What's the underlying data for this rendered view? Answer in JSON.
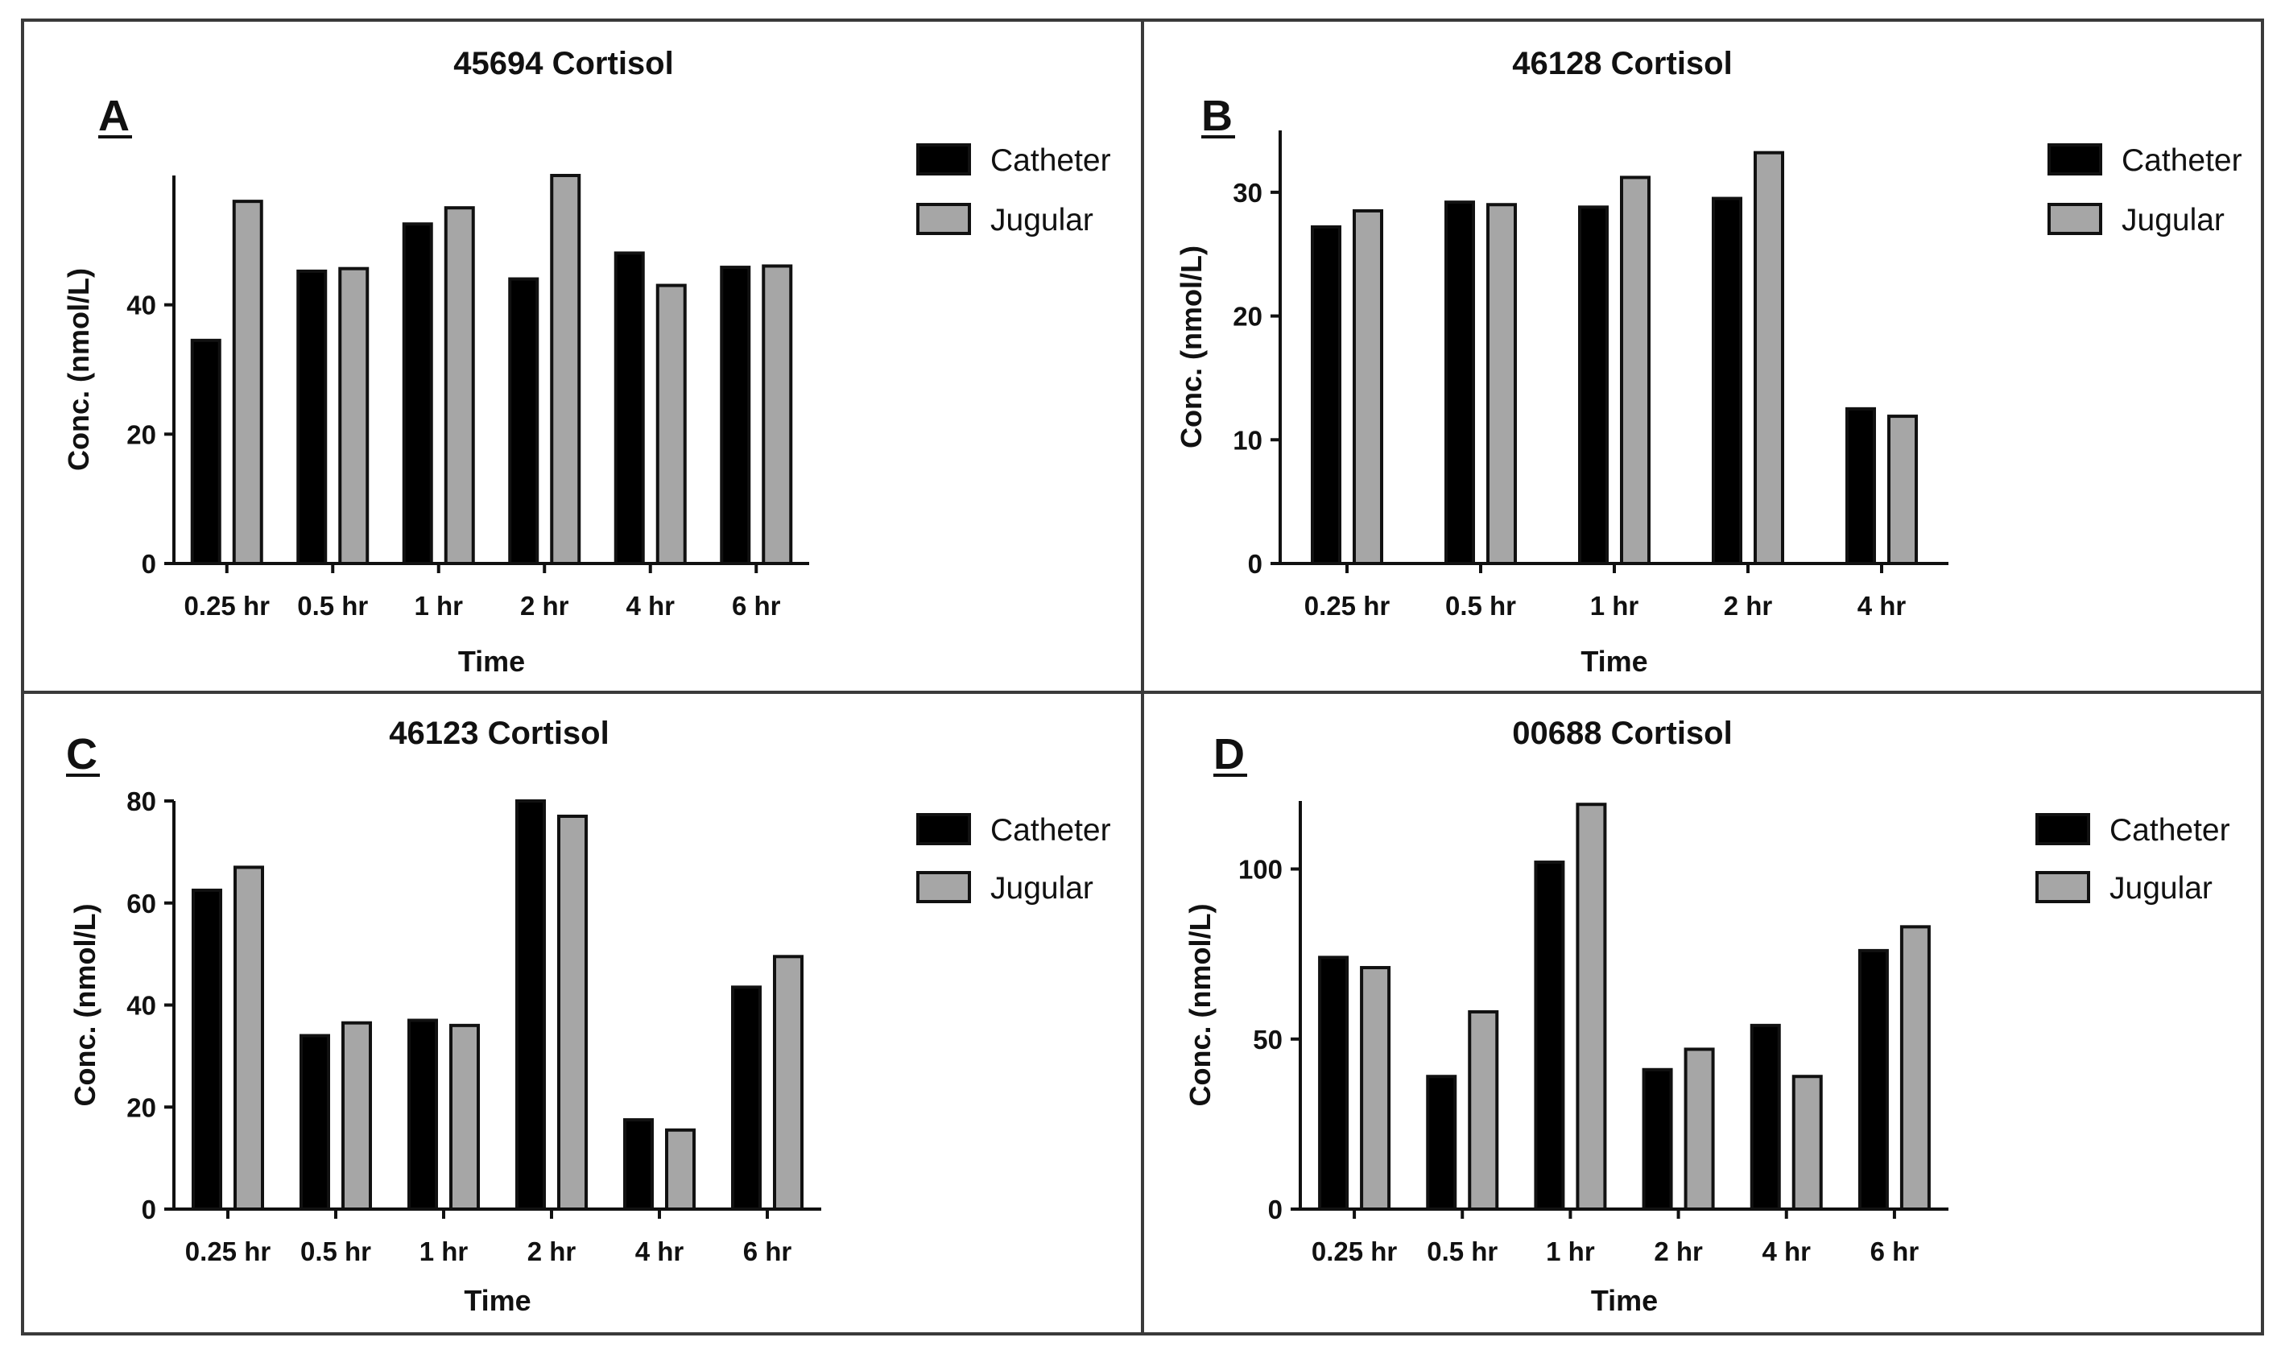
{
  "chart_data": [
    {
      "panel": "A",
      "type": "bar",
      "title": "45694 Cortisol",
      "categories": [
        "0.25 hr",
        "0.5 hr",
        "1 hr",
        "2 hr",
        "4 hr",
        "6 hr"
      ],
      "series": [
        {
          "name": "Catheter",
          "values": [
            34.5,
            45.2,
            52.5,
            44.0,
            48.0,
            45.8
          ]
        },
        {
          "name": "Jugular",
          "values": [
            56.0,
            45.6,
            55.0,
            60.0,
            43.0,
            46.0
          ]
        }
      ],
      "xlabel": "Time",
      "ylabel": "Conc. (nmol/L)",
      "ylim": [
        0,
        60
      ],
      "yticks": [
        0,
        20,
        40
      ]
    },
    {
      "panel": "B",
      "type": "bar",
      "title": "46128 Cortisol",
      "categories": [
        "0.25 hr",
        "0.5 hr",
        "1 hr",
        "2 hr",
        "4 hr"
      ],
      "series": [
        {
          "name": "Catheter",
          "values": [
            27.2,
            29.2,
            28.8,
            29.5,
            12.5
          ]
        },
        {
          "name": "Jugular",
          "values": [
            28.5,
            29.0,
            31.2,
            33.2,
            11.9
          ]
        }
      ],
      "xlabel": "Time",
      "ylabel": "Conc. (nmol/L)",
      "ylim": [
        0,
        35
      ],
      "yticks": [
        0,
        10,
        20,
        30
      ]
    },
    {
      "panel": "C",
      "type": "bar",
      "title": "46123 Cortisol",
      "categories": [
        "0.25 hr",
        "0.5 hr",
        "1 hr",
        "2 hr",
        "4 hr",
        "6 hr"
      ],
      "series": [
        {
          "name": "Catheter",
          "values": [
            62.5,
            34.0,
            37.0,
            80.0,
            17.5,
            43.5
          ]
        },
        {
          "name": "Jugular",
          "values": [
            67.0,
            36.5,
            36.0,
            77.0,
            15.5,
            49.5
          ]
        }
      ],
      "xlabel": "Time",
      "ylabel": "Conc. (nmol/L)",
      "ylim": [
        0,
        80
      ],
      "yticks": [
        0,
        20,
        40,
        60,
        80
      ]
    },
    {
      "panel": "D",
      "type": "bar",
      "title": "00688 Cortisol",
      "categories": [
        "0.25 hr",
        "0.5 hr",
        "1 hr",
        "2 hr",
        "4 hr",
        "6 hr"
      ],
      "series": [
        {
          "name": "Catheter",
          "values": [
            74.0,
            39.0,
            102.0,
            41.0,
            54.0,
            76.0
          ]
        },
        {
          "name": "Jugular",
          "values": [
            71.0,
            58.0,
            119.0,
            47.0,
            39.0,
            83.0
          ]
        }
      ],
      "xlabel": "Time",
      "ylabel": "Conc. (nmol/L)",
      "ylim": [
        0,
        120
      ],
      "yticks": [
        0,
        50,
        100
      ]
    }
  ],
  "colors": {
    "Catheter": "#000000",
    "Jugular": "#a6a6a6",
    "frame": "#3a3a3a"
  }
}
